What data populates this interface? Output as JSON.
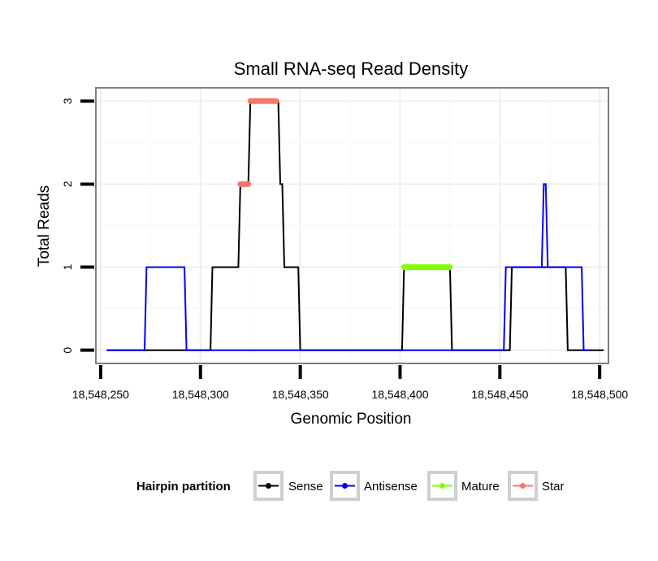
{
  "chart_data": {
    "type": "line",
    "title": "Small RNA-seq Read Density",
    "xlabel": "Genomic Position",
    "ylabel": "Total Reads",
    "xlim": [
      18548248,
      18548504
    ],
    "ylim": [
      -0.15,
      3.15
    ],
    "x_ticks": [
      18548250,
      18548300,
      18548350,
      18548400,
      18548450,
      18548500
    ],
    "x_tick_labels": [
      "18,548,250",
      "18,548,300",
      "18,548,350",
      "18,548,400",
      "18,548,450",
      "18,548,500"
    ],
    "y_ticks": [
      0,
      1,
      2,
      3
    ],
    "y_tick_labels": [
      "0",
      "1",
      "2",
      "3"
    ],
    "grid": true,
    "legend": {
      "title": "Hairpin partition",
      "position": "bottom",
      "entries": [
        "Sense",
        "Antisense",
        "Mature",
        "Star"
      ]
    },
    "series": [
      {
        "name": "Sense",
        "color": "#000000",
        "width": 2,
        "x": [
          18548253,
          18548305,
          18548306,
          18548319,
          18548320,
          18548324,
          18548325,
          18548339,
          18548340,
          18548341,
          18548342,
          18548349,
          18548350,
          18548401,
          18548402,
          18548425,
          18548426,
          18548455,
          18548456,
          18548483,
          18548484,
          18548502
        ],
        "y": [
          0,
          0,
          1,
          1,
          2,
          2,
          3,
          3,
          2,
          2,
          1,
          1,
          0,
          0,
          1,
          1,
          0,
          0,
          1,
          1,
          0,
          0
        ]
      },
      {
        "name": "Antisense",
        "color": "#0000ff",
        "width": 2,
        "x": [
          18548253,
          18548272,
          18548273,
          18548292,
          18548293,
          18548452,
          18548453,
          18548471,
          18548472,
          18548473,
          18548474,
          18548491,
          18548492,
          18548495
        ],
        "y": [
          0,
          0,
          1,
          1,
          0,
          0,
          1,
          1,
          2,
          2,
          1,
          1,
          0,
          0
        ]
      },
      {
        "name": "Mature",
        "color": "#7fff00",
        "width": 7,
        "x": [
          18548402,
          18548425
        ],
        "y": [
          1,
          1
        ]
      },
      {
        "name": "Star",
        "color": "#f8766d",
        "width": 7,
        "segments": [
          {
            "x": [
              18548320,
              18548324
            ],
            "y": [
              2,
              2
            ]
          },
          {
            "x": [
              18548325,
              18548338
            ],
            "y": [
              3,
              3
            ]
          }
        ]
      }
    ]
  }
}
